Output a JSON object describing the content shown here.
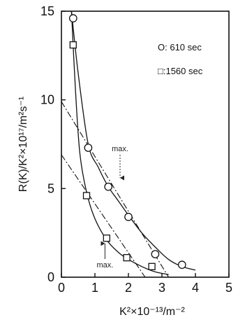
{
  "chart_data": {
    "type": "scatter",
    "xlabel": "K²×10⁻¹³/m⁻²",
    "ylabel": "R(K)/K²×10¹⁷/m²s⁻¹",
    "xlim": [
      0,
      5
    ],
    "ylim": [
      0,
      15
    ],
    "xticks": [
      0,
      1,
      2,
      3,
      4,
      5
    ],
    "yticks": [
      0,
      5,
      10,
      15
    ],
    "grid": false,
    "legend_position": "top-right",
    "series": [
      {
        "name": "610 sec",
        "marker": "circle",
        "points": [
          [
            0.35,
            14.6
          ],
          [
            0.8,
            7.3
          ],
          [
            1.4,
            5.1
          ],
          [
            2.0,
            3.4
          ],
          [
            2.8,
            1.3
          ],
          [
            3.6,
            0.7
          ]
        ],
        "fit_curve": [
          [
            0.3,
            15.0
          ],
          [
            0.5,
            11.5
          ],
          [
            0.8,
            7.5
          ],
          [
            1.1,
            6.2
          ],
          [
            1.4,
            5.1
          ],
          [
            1.7,
            4.3
          ],
          [
            2.0,
            3.5
          ],
          [
            2.4,
            2.5
          ],
          [
            2.8,
            1.7
          ],
          [
            3.2,
            1.0
          ],
          [
            3.6,
            0.6
          ],
          [
            4.0,
            0.4
          ]
        ],
        "tangent_line": [
          [
            0.0,
            9.9
          ],
          [
            3.2,
            0.0
          ]
        ]
      },
      {
        "name": "1560 sec",
        "marker": "square",
        "points": [
          [
            0.35,
            13.1
          ],
          [
            0.75,
            4.6
          ],
          [
            1.35,
            2.2
          ],
          [
            1.95,
            1.1
          ],
          [
            2.7,
            0.6
          ]
        ],
        "fit_curve": [
          [
            0.3,
            15.0
          ],
          [
            0.42,
            10.5
          ],
          [
            0.55,
            7.0
          ],
          [
            0.75,
            4.8
          ],
          [
            1.0,
            3.3
          ],
          [
            1.35,
            2.1
          ],
          [
            1.7,
            1.4
          ],
          [
            2.0,
            1.0
          ],
          [
            2.4,
            0.6
          ],
          [
            2.8,
            0.3
          ],
          [
            3.2,
            0.15
          ]
        ],
        "tangent_line": [
          [
            0.0,
            6.9
          ],
          [
            2.5,
            0.0
          ]
        ]
      }
    ],
    "annotations": [
      {
        "text": "max.",
        "x": 1.75,
        "y": 7.1,
        "arrow_to": [
          1.75,
          5.6
        ]
      },
      {
        "text": "max.",
        "x": 1.3,
        "y": 0.55,
        "arrow_to": [
          1.3,
          1.9
        ]
      }
    ],
    "legend": [
      {
        "marker": "circle",
        "label": "O: 610 sec"
      },
      {
        "marker": "square",
        "label": "□:1560 sec"
      }
    ]
  }
}
